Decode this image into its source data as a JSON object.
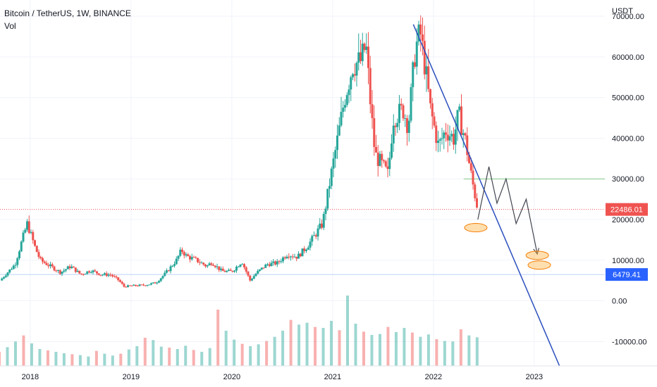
{
  "chart_data": {
    "type": "candlestick",
    "title": "Bitcoin / TetherUS, 1W, BINANCE",
    "subtitle": "Vol",
    "y_unit": "USDT",
    "y_ticks": [
      "70000.00",
      "60000.00",
      "50000.00",
      "40000.00",
      "30000.00",
      "20000.00",
      "10000.00",
      "0.00",
      "-10000.00"
    ],
    "y_tick_values": [
      70000,
      60000,
      50000,
      40000,
      30000,
      20000,
      10000,
      0,
      -10000
    ],
    "x_ticks": [
      "2018",
      "2019",
      "2020",
      "2021",
      "2022",
      "2023"
    ],
    "x_tick_values": [
      2018,
      2019,
      2020,
      2021,
      2022,
      2023
    ],
    "ylim": [
      -16000,
      74000
    ],
    "xlim": [
      2017.7,
      2023.7
    ],
    "grid": true,
    "last_price": {
      "label": "22486.01",
      "value": 22486.01,
      "color": "#ef5350"
    },
    "support_level": {
      "label": "6479.41",
      "value": 6479.41,
      "color": "#2962ff"
    },
    "resistance_level": {
      "value": 30000,
      "x_start": 2022.3,
      "color": "#81c784"
    },
    "price_path": [
      [
        2017.7,
        5000
      ],
      [
        2017.85,
        9000
      ],
      [
        2017.92,
        15000
      ],
      [
        2017.97,
        19000
      ],
      [
        2018.05,
        13000
      ],
      [
        2018.1,
        10000
      ],
      [
        2018.2,
        8500
      ],
      [
        2018.3,
        7000
      ],
      [
        2018.4,
        8500
      ],
      [
        2018.5,
        6500
      ],
      [
        2018.6,
        7500
      ],
      [
        2018.7,
        6500
      ],
      [
        2018.8,
        6400
      ],
      [
        2018.88,
        5000
      ],
      [
        2018.93,
        3500
      ],
      [
        2019.0,
        3700
      ],
      [
        2019.15,
        3900
      ],
      [
        2019.25,
        4500
      ],
      [
        2019.35,
        7000
      ],
      [
        2019.45,
        10000
      ],
      [
        2019.5,
        12500
      ],
      [
        2019.55,
        11000
      ],
      [
        2019.65,
        10000
      ],
      [
        2019.75,
        8500
      ],
      [
        2019.8,
        9500
      ],
      [
        2019.9,
        7300
      ],
      [
        2020.0,
        7200
      ],
      [
        2020.1,
        9700
      ],
      [
        2020.18,
        5000
      ],
      [
        2020.25,
        7000
      ],
      [
        2020.35,
        9000
      ],
      [
        2020.45,
        9300
      ],
      [
        2020.55,
        11500
      ],
      [
        2020.65,
        10800
      ],
      [
        2020.75,
        13500
      ],
      [
        2020.82,
        16000
      ],
      [
        2020.9,
        19000
      ],
      [
        2020.97,
        29000
      ],
      [
        2021.05,
        40000
      ],
      [
        2021.12,
        50000
      ],
      [
        2021.2,
        58000
      ],
      [
        2021.28,
        59000
      ],
      [
        2021.33,
        63000
      ],
      [
        2021.38,
        47000
      ],
      [
        2021.42,
        36000
      ],
      [
        2021.5,
        33000
      ],
      [
        2021.55,
        31000
      ],
      [
        2021.6,
        45000
      ],
      [
        2021.7,
        47000
      ],
      [
        2021.75,
        43000
      ],
      [
        2021.82,
        62000
      ],
      [
        2021.87,
        66000
      ],
      [
        2021.92,
        57000
      ],
      [
        2021.97,
        47000
      ],
      [
        2022.05,
        38000
      ],
      [
        2022.12,
        42000
      ],
      [
        2022.2,
        40000
      ],
      [
        2022.25,
        46000
      ],
      [
        2022.32,
        39000
      ],
      [
        2022.38,
        30000
      ],
      [
        2022.44,
        22486
      ]
    ],
    "volume_bars": [
      3000,
      4000,
      5200,
      6500,
      4800,
      3600,
      3300,
      3000,
      2700,
      2500,
      2300,
      2000,
      3200,
      2600,
      2200,
      2600,
      3500,
      4200,
      6000,
      5500,
      4100,
      3900,
      3600,
      4300,
      3400,
      3000,
      3800,
      12000,
      7500,
      5600,
      4700,
      4200,
      4600,
      5300,
      6200,
      7500,
      9800,
      8800,
      9200,
      8300,
      8100,
      9600,
      7600,
      15000,
      9000,
      7300,
      6600,
      6800,
      8300,
      7200,
      8100,
      7100,
      6200,
      6700,
      5700,
      5300,
      5200,
      7800,
      6500,
      6100
    ],
    "volume_scale": [
      0,
      15000
    ],
    "trendline": {
      "from": [
        2021.8,
        68000
      ],
      "to": [
        2023.25,
        -16000
      ],
      "color": "#2b4fbd"
    },
    "projection_path": [
      [
        2022.44,
        20000
      ],
      [
        2022.55,
        33000
      ],
      [
        2022.63,
        24000
      ],
      [
        2022.72,
        30000
      ],
      [
        2022.82,
        19000
      ],
      [
        2022.92,
        25000
      ],
      [
        2023.03,
        11500
      ]
    ],
    "target_ellipses": [
      {
        "x": 2022.42,
        "y": 18000
      },
      {
        "x": 2023.03,
        "y": 11200
      },
      {
        "x": 2023.05,
        "y": 8800
      }
    ]
  }
}
